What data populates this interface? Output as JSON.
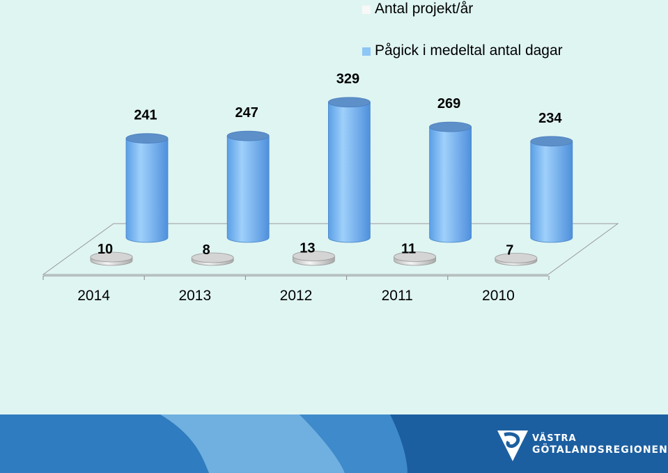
{
  "chart_data": {
    "type": "bar",
    "categories": [
      "2014",
      "2013",
      "2012",
      "2011",
      "2010"
    ],
    "series": [
      {
        "name": "Antal projekt/år",
        "values": [
          10,
          8,
          13,
          11,
          7
        ],
        "color": "#f0f0f0"
      },
      {
        "name": "Pågick i medeltal antal dagar",
        "values": [
          241,
          247,
          329,
          269,
          234
        ],
        "color": "#8ec6f5"
      }
    ],
    "legend_position": "top-right",
    "grid": false
  },
  "logo": {
    "line1": "VÄSTRA",
    "line2": "GÖTALANDSREGIONEN"
  },
  "colors": {
    "background": "#dff5f2",
    "footer": "#1c5fa0",
    "footer_light": "#6fb0e0"
  }
}
